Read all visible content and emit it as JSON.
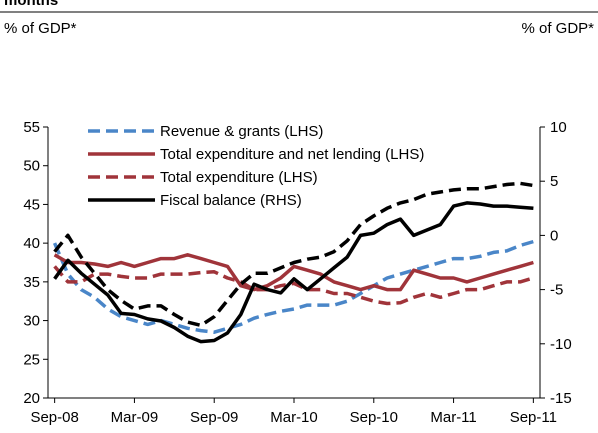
{
  "chart_data": {
    "type": "line",
    "title": "months",
    "ylabel": "% of GDP*",
    "y2label": "% of GDP*",
    "categories": [
      "Sep-08",
      null,
      null,
      null,
      null,
      null,
      "Mar-09",
      null,
      null,
      null,
      null,
      null,
      "Sep-09",
      null,
      null,
      null,
      null,
      null,
      "Mar-10",
      null,
      null,
      null,
      null,
      null,
      "Sep-10",
      null,
      null,
      null,
      null,
      null,
      "Mar-11",
      null,
      null,
      null,
      null,
      null,
      "Sep-11"
    ],
    "ylim": [
      20,
      55
    ],
    "yticks": [
      20,
      25,
      30,
      35,
      40,
      45,
      50,
      55
    ],
    "y2lim": [
      -15,
      10
    ],
    "y2ticks": [
      -15,
      -10,
      -5,
      0,
      5,
      10
    ],
    "legend": "upper left",
    "series": [
      {
        "name": "Revenue & grants (LHS)",
        "color": "#4a86c8",
        "dash": true,
        "values": [
          40,
          36,
          34,
          33,
          31.5,
          30.5,
          30,
          29.5,
          30,
          29.5,
          29,
          28.7,
          28.5,
          29,
          29.5,
          30.3,
          30.8,
          31.2,
          31.5,
          32,
          32,
          32,
          32.5,
          33.5,
          34.5,
          35.5,
          36,
          36.5,
          37,
          37.5,
          38,
          38,
          38.3,
          38.8,
          39,
          39.7,
          40.2
        ]
      },
      {
        "name": "Total expenditure and net lending (LHS)",
        "color": "#a0343a",
        "dash": false,
        "values": [
          38.5,
          37.5,
          37.5,
          37.3,
          37,
          37.5,
          37,
          37.5,
          38,
          38,
          38.5,
          38,
          37.5,
          37,
          34.5,
          34,
          34.5,
          35.5,
          37,
          36.5,
          36,
          35,
          34.5,
          34,
          34.5,
          34,
          34,
          36.5,
          36,
          35.5,
          35.5,
          35,
          35.5,
          36,
          36.5,
          37,
          37.5
        ]
      },
      {
        "name": "Total expenditure (LHS)",
        "color": "#a0343a",
        "dash": true,
        "values": [
          37,
          35,
          35,
          36,
          36,
          35.7,
          35.5,
          35.5,
          36,
          36,
          36,
          36.2,
          36.3,
          35.5,
          35,
          34,
          34,
          34.5,
          34.8,
          34,
          34,
          33.5,
          33.5,
          33,
          32.5,
          32.2,
          32.3,
          33,
          33.5,
          33,
          33.5,
          34,
          34,
          34.5,
          35,
          35,
          35.5
        ]
      },
      {
        "name": "Fiscal balance (RHS)",
        "color": "#000000",
        "dash": false,
        "axis": "y2",
        "values": [
          -4,
          -2.3,
          -3.5,
          -4.5,
          -5.5,
          -7.2,
          -7.3,
          -7.7,
          -7.9,
          -8.5,
          -9.3,
          -9.8,
          -9.7,
          -9,
          -7.3,
          -4.5,
          -5,
          -5.3,
          -4,
          -5,
          -4,
          -3,
          -2,
          0,
          0.2,
          1,
          1.5,
          0,
          0.5,
          1,
          2.7,
          3,
          2.9,
          2.7,
          2.7,
          2.6,
          2.5
        ]
      },
      {
        "color": "#000000",
        "dash": true,
        "axis": "y2",
        "values": [
          -1.5,
          0,
          -2,
          -3.5,
          -5,
          -6,
          -6.8,
          -6.5,
          -6.5,
          -7.3,
          -8,
          -8.3,
          -7.5,
          -6,
          -4.5,
          -3.5,
          -3.5,
          -3,
          -2.5,
          -2.2,
          -2,
          -1.5,
          -0.5,
          1,
          1.8,
          2.5,
          3,
          3.3,
          3.8,
          4,
          4.2,
          4.3,
          4.3,
          4.5,
          4.7,
          4.8,
          4.6
        ]
      }
    ]
  }
}
